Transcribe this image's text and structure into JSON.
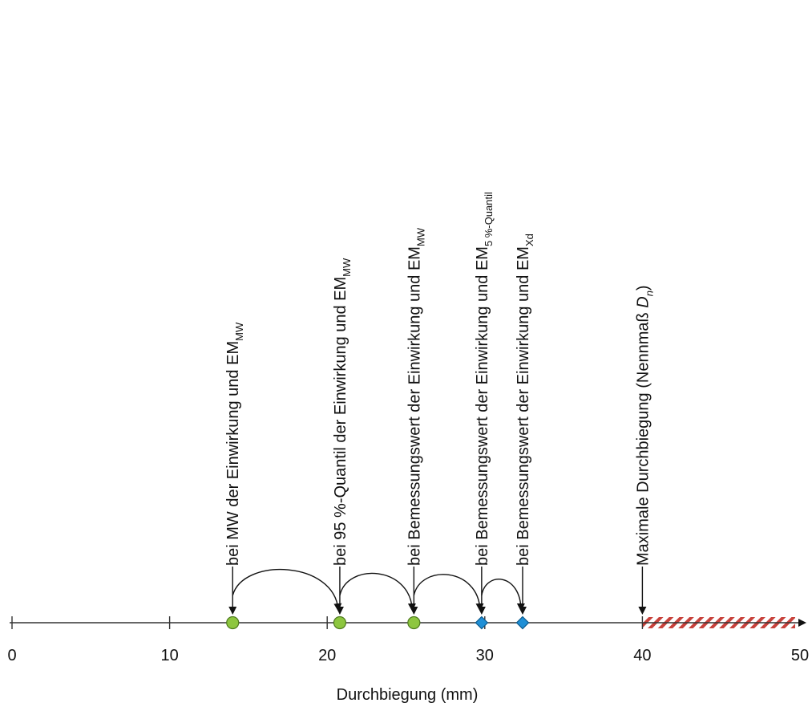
{
  "colors": {
    "axis": "#333333",
    "mean_marker": "#8dc63f",
    "mean_marker_stroke": "#4e7a1e",
    "design_marker": "#1f8fd6",
    "design_marker_stroke": "#0c5a8c",
    "hatch": "#c8413b",
    "text": "#111111"
  },
  "axis": {
    "title": "Durchbiegung (mm)",
    "min": 0,
    "max": 50,
    "major_ticks": [
      0,
      10,
      20,
      30,
      40,
      50
    ]
  },
  "limit": {
    "label_main": "Maximale Durchbiegung (Nennmaß ",
    "label_italic": "D",
    "label_sub": "n",
    "label_end": ")",
    "value": 40,
    "hatched_range": [
      40,
      50
    ]
  },
  "markers": [
    {
      "value": 14,
      "shape": "circle",
      "label_main": "bei MW der Einwirkung und EM",
      "label_sub": "MW"
    },
    {
      "value": 20.8,
      "shape": "circle",
      "label_main": "bei 95 %-Quantil der Einwirkung und EM",
      "label_sub": "MW"
    },
    {
      "value": 25.5,
      "shape": "circle",
      "label_main": "bei Bemessungswert der Einwirkung und EM",
      "label_sub": "MW"
    },
    {
      "value": 29.8,
      "shape": "diamond",
      "label_main": "bei Bemessungswert der Einwirkung und EM",
      "label_sub": "5 %-Quantil"
    },
    {
      "value": 32.4,
      "shape": "diamond",
      "label_main": "bei Bemessungswert der Einwirkung und EM",
      "label_sub": "Xd"
    }
  ],
  "transitions": [
    {
      "from": 0,
      "to": 1
    },
    {
      "from": 1,
      "to": 2
    },
    {
      "from": 2,
      "to": 3
    },
    {
      "from": 3,
      "to": 4
    }
  ]
}
